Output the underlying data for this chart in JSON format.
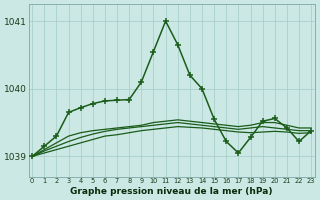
{
  "x": [
    0,
    1,
    2,
    3,
    4,
    5,
    6,
    7,
    8,
    9,
    10,
    11,
    12,
    13,
    14,
    15,
    16,
    17,
    18,
    19,
    20,
    21,
    22,
    23
  ],
  "series_flat1": [
    1039.0,
    1039.05,
    1039.1,
    1039.15,
    1039.2,
    1039.25,
    1039.3,
    1039.32,
    1039.35,
    1039.38,
    1039.4,
    1039.42,
    1039.44,
    1039.43,
    1039.42,
    1039.4,
    1039.38,
    1039.36,
    1039.35,
    1039.36,
    1039.37,
    1039.36,
    1039.34,
    1039.35
  ],
  "series_flat2": [
    1039.0,
    1039.08,
    1039.15,
    1039.22,
    1039.28,
    1039.33,
    1039.37,
    1039.4,
    1039.42,
    1039.44,
    1039.46,
    1039.48,
    1039.5,
    1039.48,
    1039.46,
    1039.44,
    1039.42,
    1039.4,
    1039.42,
    1039.44,
    1039.42,
    1039.4,
    1039.38,
    1039.38
  ],
  "series_flat3": [
    1039.0,
    1039.1,
    1039.2,
    1039.3,
    1039.35,
    1039.38,
    1039.4,
    1039.42,
    1039.44,
    1039.46,
    1039.5,
    1039.52,
    1039.54,
    1039.52,
    1039.5,
    1039.48,
    1039.46,
    1039.44,
    1039.46,
    1039.5,
    1039.5,
    1039.46,
    1039.42,
    1039.42
  ],
  "series_main": [
    1039.0,
    1039.15,
    1039.3,
    1039.65,
    1039.72,
    1039.78,
    1039.82,
    1039.83,
    1039.84,
    1040.1,
    1040.55,
    1041.0,
    1040.65,
    1040.2,
    1040.0,
    1039.55,
    1039.22,
    1039.05,
    1039.28,
    1039.52,
    1039.56,
    1039.42,
    1039.22,
    1039.38
  ],
  "bg_color": "#cce8e4",
  "grid_color": "#aad0cc",
  "line_color_main": "#1a5c1a",
  "line_color_flat": "#1a5c1a",
  "xlabel": "Graphe pression niveau de la mer (hPa)",
  "ylim_min": 1038.7,
  "ylim_max": 1041.25,
  "yticks": [
    1039,
    1040,
    1041
  ],
  "xlim_min": -0.3,
  "xlim_max": 23.3
}
